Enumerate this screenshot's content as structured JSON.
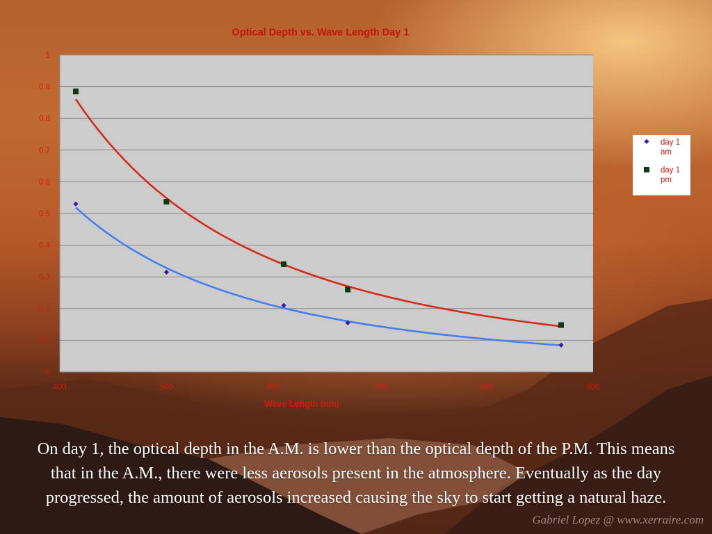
{
  "caption": "On day 1, the optical depth in the A.M. is lower than the optical depth of the P.M. This means that in the A.M., there were less aerosols present in the atmosphere. Eventually as the day progressed, the amount of aerosols increased causing the sky to start getting a natural haze.",
  "watermark": "Gabriel Lopez @ www.xerraire.com",
  "chart_data": {
    "type": "scatter",
    "title": "Optical Depth vs. Wave Length Day 1",
    "xlabel": "Wave Length (nm)",
    "ylabel": "",
    "xlim": [
      400,
      900
    ],
    "ylim": [
      0,
      1
    ],
    "xticks": [
      400,
      500,
      600,
      700,
      800,
      900
    ],
    "yticks": [
      0,
      0.1,
      0.2,
      0.3,
      0.4,
      0.5,
      0.6,
      0.7,
      0.8,
      0.9,
      1
    ],
    "grid": true,
    "legend_position": "right",
    "plot_background": "#cccccc",
    "series": [
      {
        "name": "day 1 am",
        "marker": "diamond",
        "marker_color": "#3a1aa8",
        "trendline_color": "#4a7cf0",
        "x": [
          415,
          500,
          610,
          670,
          870
        ],
        "y": [
          0.53,
          0.315,
          0.21,
          0.155,
          0.085
        ],
        "trendline": "power"
      },
      {
        "name": "day 1 pm",
        "marker": "square",
        "marker_color": "#0e3a12",
        "trendline_color": "#d42a1c",
        "x": [
          415,
          500,
          610,
          670,
          870
        ],
        "y": [
          0.885,
          0.537,
          0.34,
          0.26,
          0.148
        ],
        "trendline": "power"
      }
    ]
  }
}
